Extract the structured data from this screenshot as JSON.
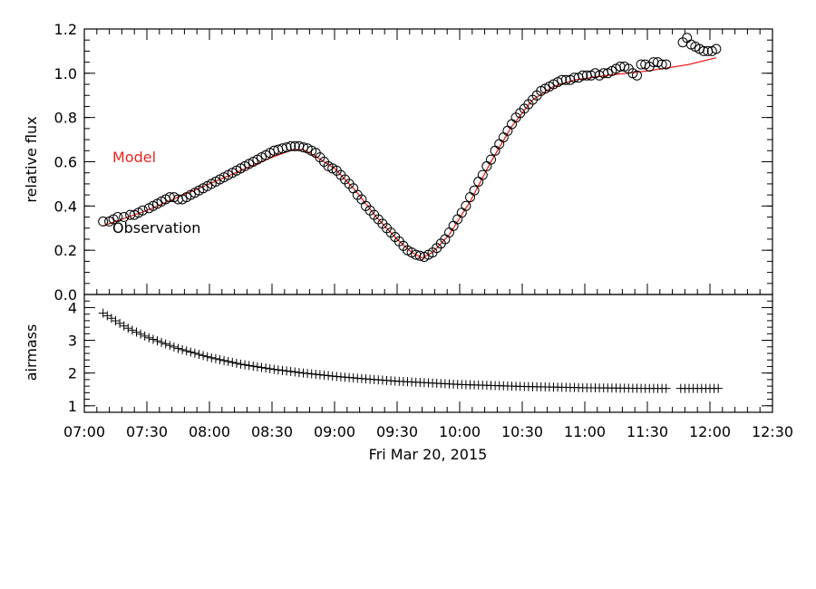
{
  "chart_data": [
    {
      "type": "scatter",
      "ylabel": "relative flux",
      "ylim": [
        0.0,
        1.2
      ],
      "yticks": [
        "0.0",
        "0.2",
        "0.4",
        "0.6",
        "0.8",
        "1.0",
        "1.2"
      ],
      "xlim": [
        "07:00",
        "12:30"
      ],
      "series": [
        {
          "name": "Observation",
          "style": "open-circle",
          "color": "#000000",
          "points": [
            [
              "07:09",
              0.33
            ],
            [
              "07:12",
              0.33
            ],
            [
              "07:14",
              0.34
            ],
            [
              "07:16",
              0.35
            ],
            [
              "07:19",
              0.35
            ],
            [
              "07:22",
              0.36
            ],
            [
              "07:24",
              0.36
            ],
            [
              "07:26",
              0.37
            ],
            [
              "07:28",
              0.38
            ],
            [
              "07:31",
              0.39
            ],
            [
              "07:33",
              0.4
            ],
            [
              "07:35",
              0.41
            ],
            [
              "07:37",
              0.42
            ],
            [
              "07:39",
              0.43
            ],
            [
              "07:41",
              0.44
            ],
            [
              "07:43",
              0.44
            ],
            [
              "07:45",
              0.43
            ],
            [
              "07:47",
              0.43
            ],
            [
              "07:49",
              0.44
            ],
            [
              "07:51",
              0.45
            ],
            [
              "07:53",
              0.46
            ],
            [
              "07:55",
              0.47
            ],
            [
              "07:57",
              0.48
            ],
            [
              "07:59",
              0.49
            ],
            [
              "08:01",
              0.5
            ],
            [
              "08:03",
              0.51
            ],
            [
              "08:05",
              0.52
            ],
            [
              "08:07",
              0.53
            ],
            [
              "08:09",
              0.54
            ],
            [
              "08:11",
              0.55
            ],
            [
              "08:13",
              0.56
            ],
            [
              "08:15",
              0.57
            ],
            [
              "08:17",
              0.58
            ],
            [
              "08:19",
              0.59
            ],
            [
              "08:21",
              0.6
            ],
            [
              "08:23",
              0.61
            ],
            [
              "08:25",
              0.62
            ],
            [
              "08:27",
              0.63
            ],
            [
              "08:29",
              0.64
            ],
            [
              "08:31",
              0.65
            ],
            [
              "08:33",
              0.655
            ],
            [
              "08:35",
              0.66
            ],
            [
              "08:37",
              0.665
            ],
            [
              "08:39",
              0.67
            ],
            [
              "08:41",
              0.67
            ],
            [
              "08:43",
              0.67
            ],
            [
              "08:45",
              0.665
            ],
            [
              "08:47",
              0.66
            ],
            [
              "08:49",
              0.65
            ],
            [
              "08:51",
              0.64
            ],
            [
              "08:53",
              0.62
            ],
            [
              "08:55",
              0.6
            ],
            [
              "08:57",
              0.58
            ],
            [
              "08:59",
              0.57
            ],
            [
              "09:01",
              0.56
            ],
            [
              "09:03",
              0.54
            ],
            [
              "09:05",
              0.52
            ],
            [
              "09:07",
              0.5
            ],
            [
              "09:09",
              0.48
            ],
            [
              "09:11",
              0.45
            ],
            [
              "09:13",
              0.43
            ],
            [
              "09:15",
              0.4
            ],
            [
              "09:17",
              0.38
            ],
            [
              "09:19",
              0.36
            ],
            [
              "09:21",
              0.34
            ],
            [
              "09:23",
              0.32
            ],
            [
              "09:25",
              0.3
            ],
            [
              "09:27",
              0.28
            ],
            [
              "09:29",
              0.26
            ],
            [
              "09:31",
              0.24
            ],
            [
              "09:33",
              0.22
            ],
            [
              "09:35",
              0.2
            ],
            [
              "09:37",
              0.19
            ],
            [
              "09:39",
              0.18
            ],
            [
              "09:41",
              0.175
            ],
            [
              "09:43",
              0.17
            ],
            [
              "09:45",
              0.18
            ],
            [
              "09:47",
              0.19
            ],
            [
              "09:49",
              0.21
            ],
            [
              "09:51",
              0.23
            ],
            [
              "09:53",
              0.25
            ],
            [
              "09:55",
              0.28
            ],
            [
              "09:57",
              0.31
            ],
            [
              "09:59",
              0.34
            ],
            [
              "10:01",
              0.37
            ],
            [
              "10:03",
              0.4
            ],
            [
              "10:05",
              0.44
            ],
            [
              "10:07",
              0.47
            ],
            [
              "10:09",
              0.51
            ],
            [
              "10:11",
              0.54
            ],
            [
              "10:13",
              0.58
            ],
            [
              "10:15",
              0.61
            ],
            [
              "10:17",
              0.65
            ],
            [
              "10:19",
              0.68
            ],
            [
              "10:21",
              0.71
            ],
            [
              "10:23",
              0.74
            ],
            [
              "10:25",
              0.77
            ],
            [
              "10:27",
              0.8
            ],
            [
              "10:29",
              0.82
            ],
            [
              "10:31",
              0.84
            ],
            [
              "10:33",
              0.86
            ],
            [
              "10:35",
              0.88
            ],
            [
              "10:37",
              0.9
            ],
            [
              "10:39",
              0.92
            ],
            [
              "10:41",
              0.93
            ],
            [
              "10:43",
              0.94
            ],
            [
              "10:45",
              0.95
            ],
            [
              "10:47",
              0.96
            ],
            [
              "10:49",
              0.97
            ],
            [
              "10:51",
              0.97
            ],
            [
              "10:53",
              0.97
            ],
            [
              "10:55",
              0.98
            ],
            [
              "10:57",
              0.98
            ],
            [
              "10:59",
              0.99
            ],
            [
              "11:01",
              0.99
            ],
            [
              "11:03",
              0.99
            ],
            [
              "11:05",
              1.0
            ],
            [
              "11:07",
              0.99
            ],
            [
              "11:09",
              1.0
            ],
            [
              "11:11",
              1.0
            ],
            [
              "11:13",
              1.01
            ],
            [
              "11:15",
              1.02
            ],
            [
              "11:17",
              1.03
            ],
            [
              "11:19",
              1.03
            ],
            [
              "11:21",
              1.02
            ],
            [
              "11:23",
              1.0
            ],
            [
              "11:25",
              0.99
            ],
            [
              "11:27",
              1.04
            ],
            [
              "11:29",
              1.04
            ],
            [
              "11:31",
              1.03
            ],
            [
              "11:33",
              1.05
            ],
            [
              "11:35",
              1.05
            ],
            [
              "11:37",
              1.04
            ],
            [
              "11:39",
              1.04
            ],
            [
              "11:47",
              1.14
            ],
            [
              "11:49",
              1.16
            ],
            [
              "11:51",
              1.13
            ],
            [
              "11:53",
              1.12
            ],
            [
              "11:55",
              1.11
            ],
            [
              "11:57",
              1.1
            ],
            [
              "11:59",
              1.1
            ],
            [
              "12:01",
              1.1
            ],
            [
              "12:03",
              1.11
            ]
          ]
        },
        {
          "name": "Model",
          "style": "line",
          "color": "#e8251f",
          "points": [
            [
              "07:09",
              0.31
            ],
            [
              "07:30",
              0.38
            ],
            [
              "07:50",
              0.46
            ],
            [
              "08:10",
              0.54
            ],
            [
              "08:30",
              0.62
            ],
            [
              "08:40",
              0.655
            ],
            [
              "08:45",
              0.655
            ],
            [
              "08:50",
              0.63
            ],
            [
              "09:00",
              0.57
            ],
            [
              "09:10",
              0.47
            ],
            [
              "09:20",
              0.35
            ],
            [
              "09:30",
              0.25
            ],
            [
              "09:37",
              0.19
            ],
            [
              "09:42",
              0.165
            ],
            [
              "09:47",
              0.19
            ],
            [
              "09:55",
              0.27
            ],
            [
              "10:05",
              0.42
            ],
            [
              "10:15",
              0.6
            ],
            [
              "10:25",
              0.76
            ],
            [
              "10:35",
              0.88
            ],
            [
              "10:45",
              0.94
            ],
            [
              "10:55",
              0.97
            ],
            [
              "11:10",
              0.99
            ],
            [
              "11:30",
              1.01
            ],
            [
              "11:50",
              1.04
            ],
            [
              "12:03",
              1.07
            ]
          ]
        }
      ]
    },
    {
      "type": "scatter",
      "ylabel": "airmass",
      "ylim": [
        0.8,
        4.4
      ],
      "yticks": [
        "1",
        "2",
        "3",
        "4"
      ],
      "xlim": [
        "07:00",
        "12:30"
      ],
      "xticks": [
        "07:00",
        "07:30",
        "08:00",
        "08:30",
        "09:00",
        "09:30",
        "10:00",
        "10:30",
        "11:00",
        "11:30",
        "12:00",
        "12:30"
      ],
      "xlabel": "Fri Mar 20, 2015",
      "series": [
        {
          "style": "plus",
          "color": "#000000",
          "segments": [
            {
              "start": "07:09",
              "end": "11:39",
              "step_minutes": 2
            },
            {
              "start": "11:46",
              "end": "12:04",
              "step_minutes": 2
            }
          ],
          "curve_points": [
            [
              "07:09",
              3.83
            ],
            [
              "07:20",
              3.4
            ],
            [
              "07:30",
              3.1
            ],
            [
              "07:45",
              2.75
            ],
            [
              "08:00",
              2.48
            ],
            [
              "08:15",
              2.27
            ],
            [
              "08:30",
              2.12
            ],
            [
              "08:45",
              2.0
            ],
            [
              "09:00",
              1.9
            ],
            [
              "09:15",
              1.82
            ],
            [
              "09:30",
              1.75
            ],
            [
              "09:45",
              1.7
            ],
            [
              "10:00",
              1.65
            ],
            [
              "10:15",
              1.62
            ],
            [
              "10:30",
              1.59
            ],
            [
              "10:45",
              1.57
            ],
            [
              "11:00",
              1.55
            ],
            [
              "11:15",
              1.54
            ],
            [
              "11:30",
              1.53
            ],
            [
              "11:45",
              1.53
            ],
            [
              "12:04",
              1.53
            ]
          ]
        }
      ]
    }
  ]
}
